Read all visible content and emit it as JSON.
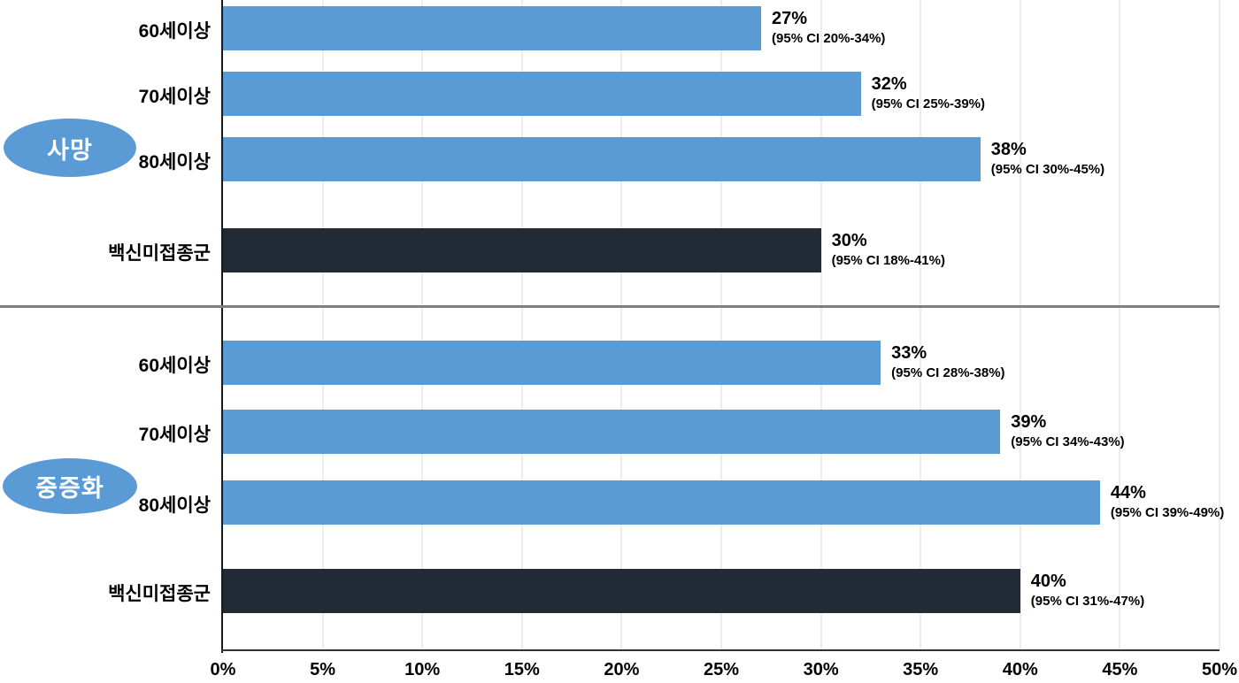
{
  "chart_data": {
    "type": "bar",
    "orientation": "horizontal",
    "title": "",
    "xlabel": "",
    "ylabel": "",
    "xlim": [
      0,
      50
    ],
    "x_tick_labels": [
      "0%",
      "5%",
      "10%",
      "15%",
      "20%",
      "25%",
      "30%",
      "35%",
      "40%",
      "45%",
      "50%"
    ],
    "grid": true,
    "groups": [
      {
        "badge": "사망",
        "rows": [
          {
            "label": "60세이상",
            "value": 27,
            "value_label": "27%",
            "ci": "(95% CI 20%-34%)",
            "color_key": "blue"
          },
          {
            "label": "70세이상",
            "value": 32,
            "value_label": "32%",
            "ci": "(95% CI 25%-39%)",
            "color_key": "blue"
          },
          {
            "label": "80세이상",
            "value": 38,
            "value_label": "38%",
            "ci": "(95% CI 30%-45%)",
            "color_key": "blue"
          },
          {
            "label": "백신미접종군",
            "value": 30,
            "value_label": "30%",
            "ci": "(95% CI 18%-41%)",
            "color_key": "dark"
          }
        ]
      },
      {
        "badge": "중증화",
        "rows": [
          {
            "label": "60세이상",
            "value": 33,
            "value_label": "33%",
            "ci": "(95% CI 28%-38%)",
            "color_key": "blue"
          },
          {
            "label": "70세이상",
            "value": 39,
            "value_label": "39%",
            "ci": "(95% CI 34%-43%)",
            "color_key": "blue"
          },
          {
            "label": "80세이상",
            "value": 44,
            "value_label": "44%",
            "ci": "(95% CI 39%-49%)",
            "color_key": "blue"
          },
          {
            "label": "백신미접종군",
            "value": 40,
            "value_label": "40%",
            "ci": "(95% CI 31%-47%)",
            "color_key": "dark"
          }
        ]
      }
    ],
    "colors": {
      "bar_blue": "#5B9BD5",
      "bar_dark": "#222A35",
      "badge_fill": "#5B9BD5",
      "badge_text": "#FFFFFF",
      "gridline": "#EDEDED",
      "y_axis": "#1A1A1A",
      "x_axis": "#333333",
      "divider": "#7F7F7F",
      "text": "#000000"
    }
  }
}
